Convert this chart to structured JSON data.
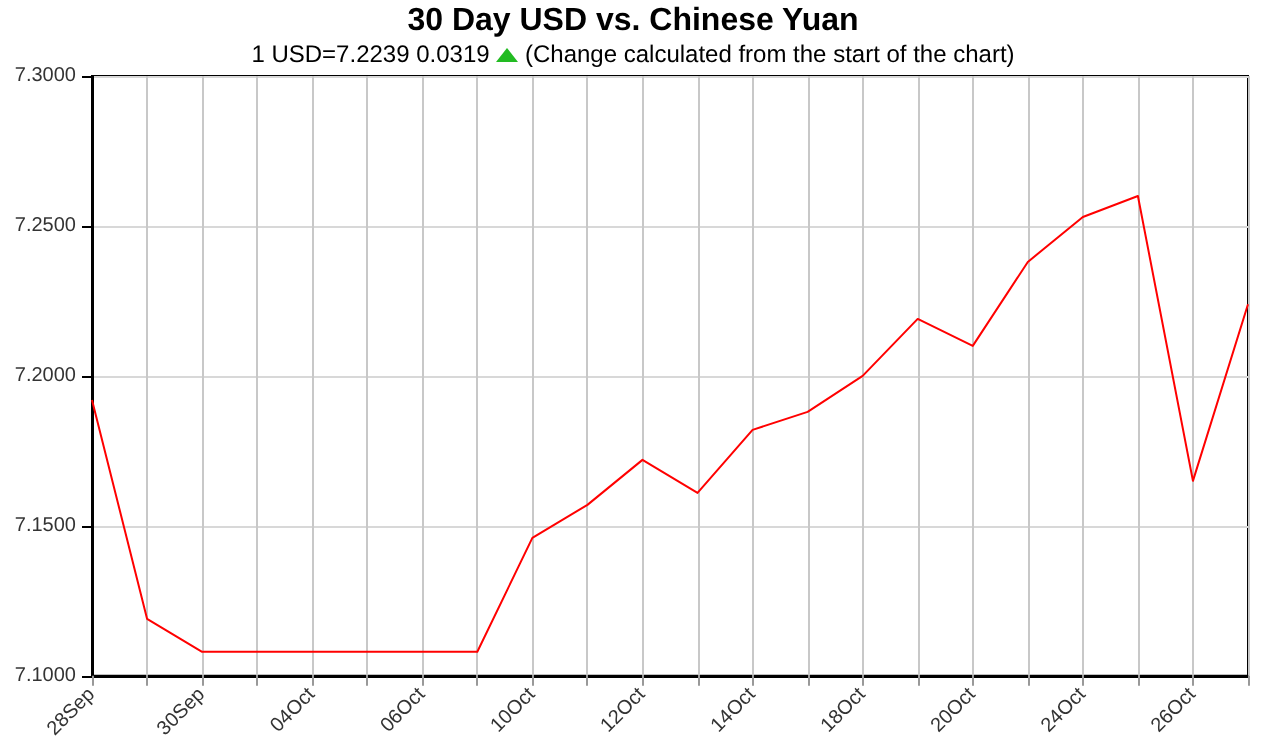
{
  "chart_data": {
    "type": "line",
    "title": "30 Day USD vs. Chinese Yuan",
    "subtitle": "1 USD=7.2239  0.0319",
    "annotations": [
      "(Change calculated from the start of the chart)"
    ],
    "categories": [
      "28Sep",
      null,
      "30Sep",
      null,
      "04Oct",
      null,
      "06Oct",
      null,
      "10Oct",
      null,
      "12Oct",
      null,
      "14Oct",
      null,
      "18Oct",
      null,
      "20Oct",
      null,
      "24Oct",
      null,
      "26Oct",
      null
    ],
    "series": [
      {
        "color": "#ff0000",
        "values": [
          7.192,
          7.119,
          7.108,
          7.108,
          7.108,
          7.108,
          7.108,
          7.108,
          7.146,
          7.157,
          7.172,
          7.161,
          7.182,
          7.188,
          7.2,
          7.219,
          7.21,
          7.238,
          7.253,
          7.26,
          7.165,
          7.2239
        ]
      }
    ],
    "ylim": [
      7.1,
      7.3
    ],
    "yticks": [
      {
        "value": 7.1,
        "label": "7.1000"
      },
      {
        "value": 7.15,
        "label": "7.1500"
      },
      {
        "value": 7.2,
        "label": "7.2000"
      },
      {
        "value": 7.25,
        "label": "7.2500"
      },
      {
        "value": 7.3,
        "label": "7.3000"
      }
    ],
    "grid": true,
    "marker": "none",
    "line_style": "solid"
  }
}
